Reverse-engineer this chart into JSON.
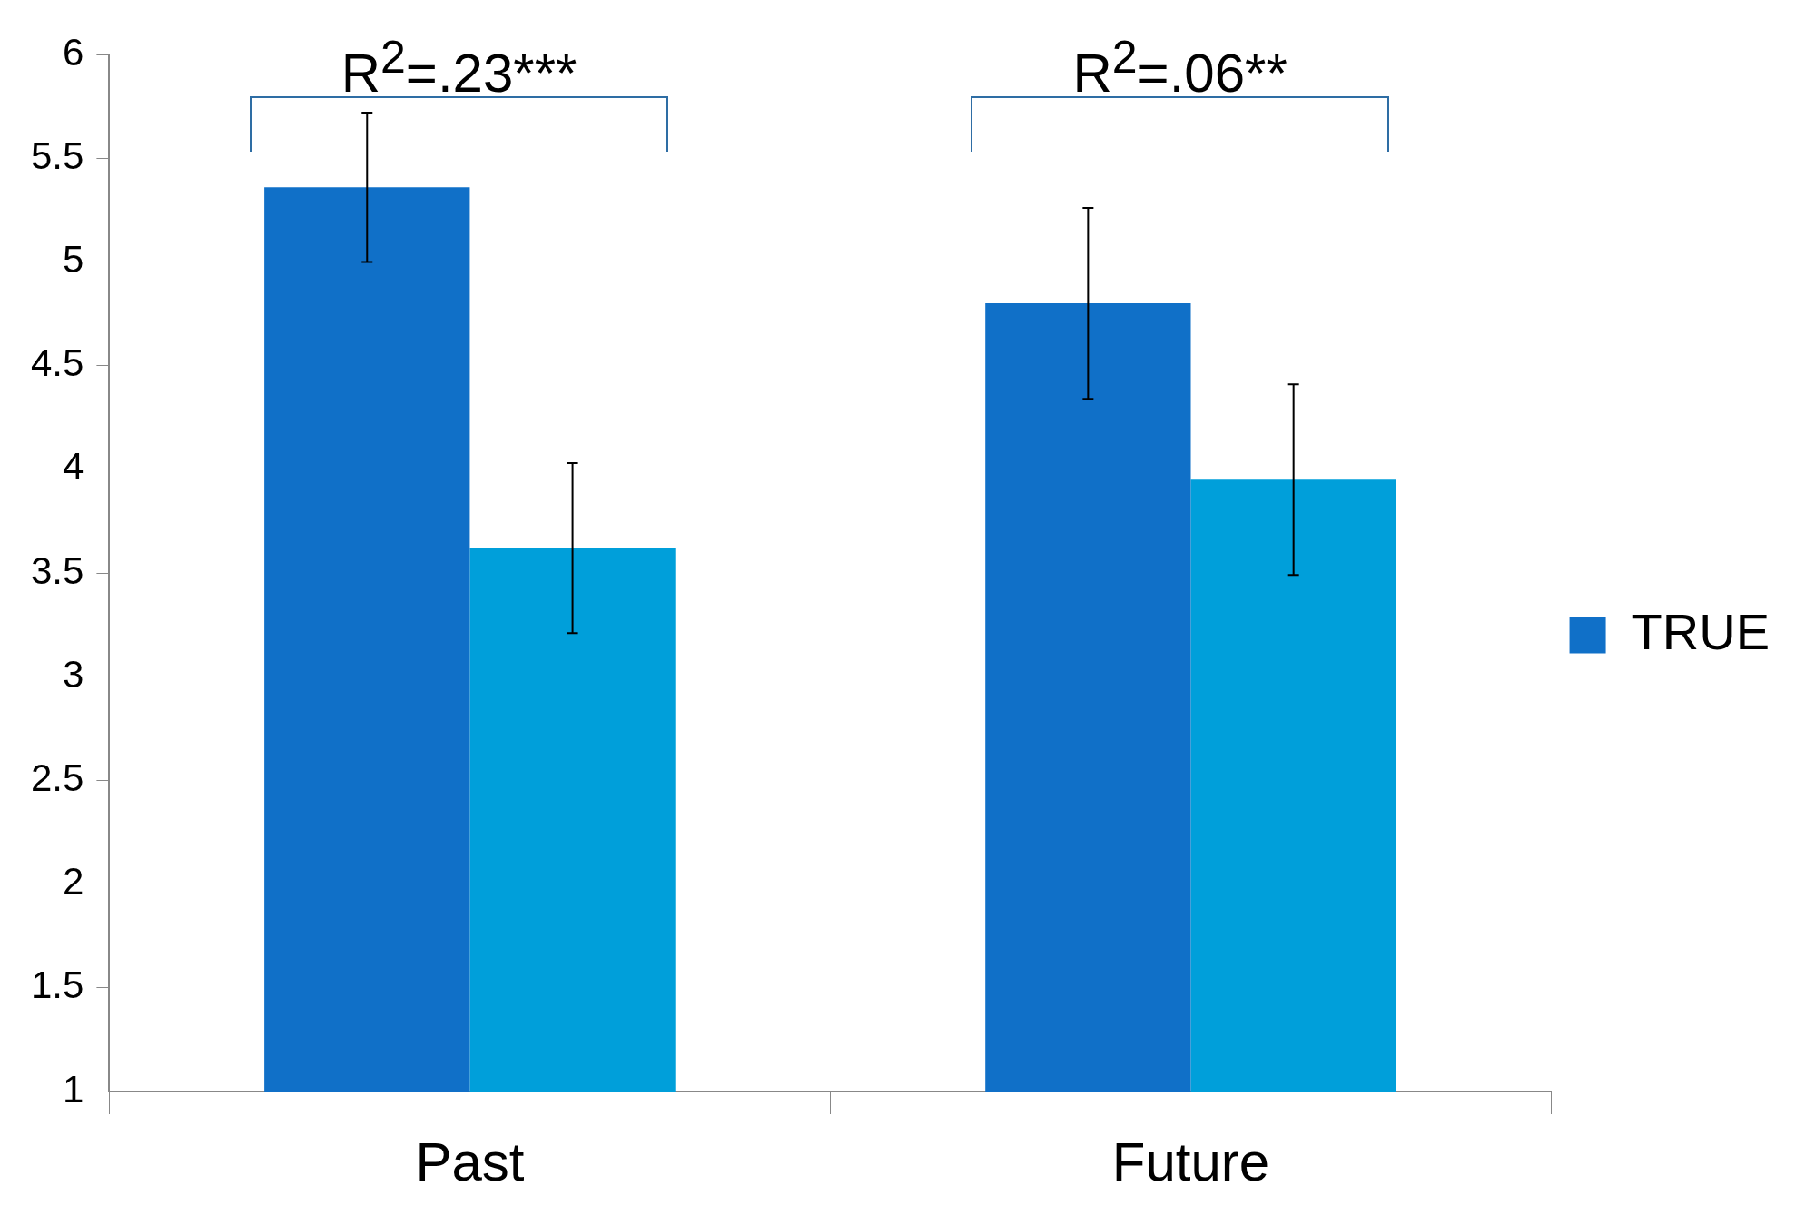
{
  "chart_data": {
    "type": "bar",
    "categories": [
      "Past",
      "Future"
    ],
    "series": [
      {
        "name": "TRUE",
        "color": "#1070c8",
        "values": [
          5.36,
          4.8
        ],
        "errors": [
          0.36,
          0.46
        ]
      },
      {
        "color": "#009fda",
        "values": [
          3.62,
          3.95
        ],
        "errors": [
          0.41,
          0.46
        ]
      }
    ],
    "ylim": [
      1,
      6
    ],
    "yticks": [
      1,
      1.5,
      2,
      2.5,
      3,
      3.5,
      4,
      4.5,
      5,
      5.5,
      6
    ],
    "grid": false,
    "legend": "right",
    "annotations": [
      "R$^{2}$=.23***",
      "R$^{2}$=.06**"
    ]
  }
}
